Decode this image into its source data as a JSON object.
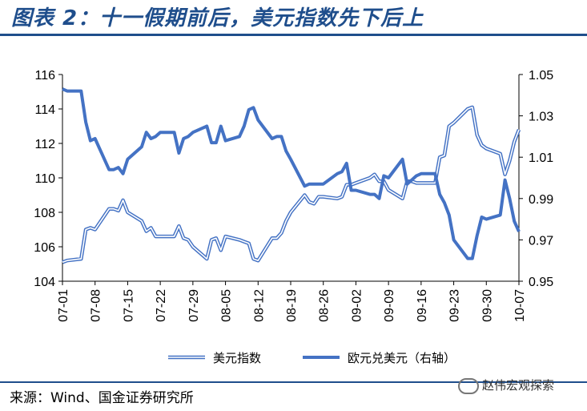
{
  "header": {
    "title": "图表 2：十一假期前后，美元指数先下后上"
  },
  "footer": {
    "source": "来源：Wind、国金证券研究所"
  },
  "watermark": {
    "text": "赵伟宏观探索"
  },
  "colors": {
    "title": "#1f4e8c",
    "line": "#4472c4"
  },
  "chart_data": {
    "type": "line",
    "x_ticks": [
      "07-01",
      "07-08",
      "07-15",
      "07-22",
      "07-29",
      "08-05",
      "08-12",
      "08-19",
      "08-26",
      "09-02",
      "09-09",
      "09-16",
      "09-23",
      "09-30",
      "10-07"
    ],
    "y_left": {
      "range": [
        104,
        116
      ],
      "ticks": [
        "104",
        "106",
        "108",
        "110",
        "112",
        "114",
        "116"
      ]
    },
    "y_right": {
      "range": [
        0.95,
        1.05
      ],
      "ticks": [
        "0.95",
        "0.97",
        "0.99",
        "1.01",
        "1.03",
        "1.05"
      ]
    },
    "grid": false,
    "legend_position": "bottom",
    "series": [
      {
        "name": "美元指数",
        "axis": "left",
        "style": "double-line",
        "x": [
          "07-01",
          "07-02",
          "07-05",
          "07-06",
          "07-07",
          "07-08",
          "07-11",
          "07-12",
          "07-13",
          "07-14",
          "07-15",
          "07-18",
          "07-19",
          "07-20",
          "07-21",
          "07-22",
          "07-25",
          "07-26",
          "07-27",
          "07-28",
          "07-29",
          "08-01",
          "08-02",
          "08-03",
          "08-04",
          "08-05",
          "08-08",
          "08-09",
          "08-10",
          "08-11",
          "08-12",
          "08-15",
          "08-16",
          "08-17",
          "08-18",
          "08-19",
          "08-22",
          "08-23",
          "08-24",
          "08-25",
          "08-26",
          "08-29",
          "08-30",
          "08-31",
          "09-01",
          "09-02",
          "09-05",
          "09-06",
          "09-07",
          "09-08",
          "09-09",
          "09-12",
          "09-13",
          "09-14",
          "09-15",
          "09-16",
          "09-19",
          "09-20",
          "09-21",
          "09-22",
          "09-23",
          "09-26",
          "09-27",
          "09-28",
          "09-29",
          "09-30",
          "10-03",
          "10-04",
          "10-05",
          "10-06",
          "10-07"
        ],
        "values": [
          105.1,
          105.2,
          105.3,
          107.0,
          107.1,
          107.0,
          108.2,
          108.2,
          108.1,
          108.7,
          108.0,
          107.5,
          106.9,
          107.1,
          106.6,
          106.6,
          106.6,
          107.2,
          106.5,
          106.4,
          106.0,
          105.3,
          106.4,
          106.5,
          105.8,
          106.6,
          106.4,
          106.3,
          106.2,
          105.3,
          105.2,
          106.5,
          106.5,
          106.8,
          107.5,
          108.0,
          109.0,
          108.6,
          108.5,
          108.9,
          108.9,
          108.8,
          108.9,
          109.6,
          109.6,
          109.7,
          110.0,
          110.2,
          109.8,
          109.8,
          109.3,
          108.8,
          109.8,
          109.8,
          109.7,
          109.7,
          109.7,
          111.2,
          111.3,
          113.0,
          113.2,
          114.0,
          114.1,
          112.5,
          111.9,
          111.7,
          111.4,
          110.2,
          111.0,
          112.1,
          112.8
        ]
      },
      {
        "name": "欧元兑美元（右轴）",
        "axis": "right",
        "style": "thick-line",
        "x": [
          "07-01",
          "07-02",
          "07-05",
          "07-06",
          "07-07",
          "07-08",
          "07-11",
          "07-12",
          "07-13",
          "07-14",
          "07-15",
          "07-18",
          "07-19",
          "07-20",
          "07-21",
          "07-22",
          "07-25",
          "07-26",
          "07-27",
          "07-28",
          "07-29",
          "08-01",
          "08-02",
          "08-03",
          "08-04",
          "08-05",
          "08-08",
          "08-09",
          "08-10",
          "08-11",
          "08-12",
          "08-15",
          "08-16",
          "08-17",
          "08-18",
          "08-19",
          "08-22",
          "08-23",
          "08-24",
          "08-25",
          "08-26",
          "08-29",
          "08-30",
          "08-31",
          "09-01",
          "09-02",
          "09-05",
          "09-06",
          "09-07",
          "09-08",
          "09-09",
          "09-12",
          "09-13",
          "09-14",
          "09-15",
          "09-16",
          "09-19",
          "09-20",
          "09-21",
          "09-22",
          "09-23",
          "09-26",
          "09-27",
          "09-28",
          "09-29",
          "09-30",
          "10-03",
          "10-04",
          "10-05",
          "10-06",
          "10-07"
        ],
        "values": [
          1.043,
          1.042,
          1.042,
          1.027,
          1.018,
          1.019,
          1.004,
          1.004,
          1.005,
          1.002,
          1.009,
          1.015,
          1.022,
          1.019,
          1.02,
          1.022,
          1.022,
          1.012,
          1.019,
          1.02,
          1.022,
          1.025,
          1.017,
          1.017,
          1.025,
          1.018,
          1.02,
          1.025,
          1.033,
          1.034,
          1.028,
          1.019,
          1.02,
          1.02,
          1.013,
          1.009,
          0.996,
          0.997,
          0.997,
          0.997,
          0.997,
          1.002,
          1.003,
          1.007,
          0.994,
          0.994,
          0.992,
          0.992,
          0.99,
          1.001,
          1.0,
          1.009,
          0.997,
          0.999,
          1.001,
          1.002,
          1.002,
          0.992,
          0.988,
          0.982,
          0.97,
          0.961,
          0.961,
          0.972,
          0.981,
          0.98,
          0.982,
          0.999,
          0.99,
          0.979,
          0.974
        ]
      }
    ]
  }
}
